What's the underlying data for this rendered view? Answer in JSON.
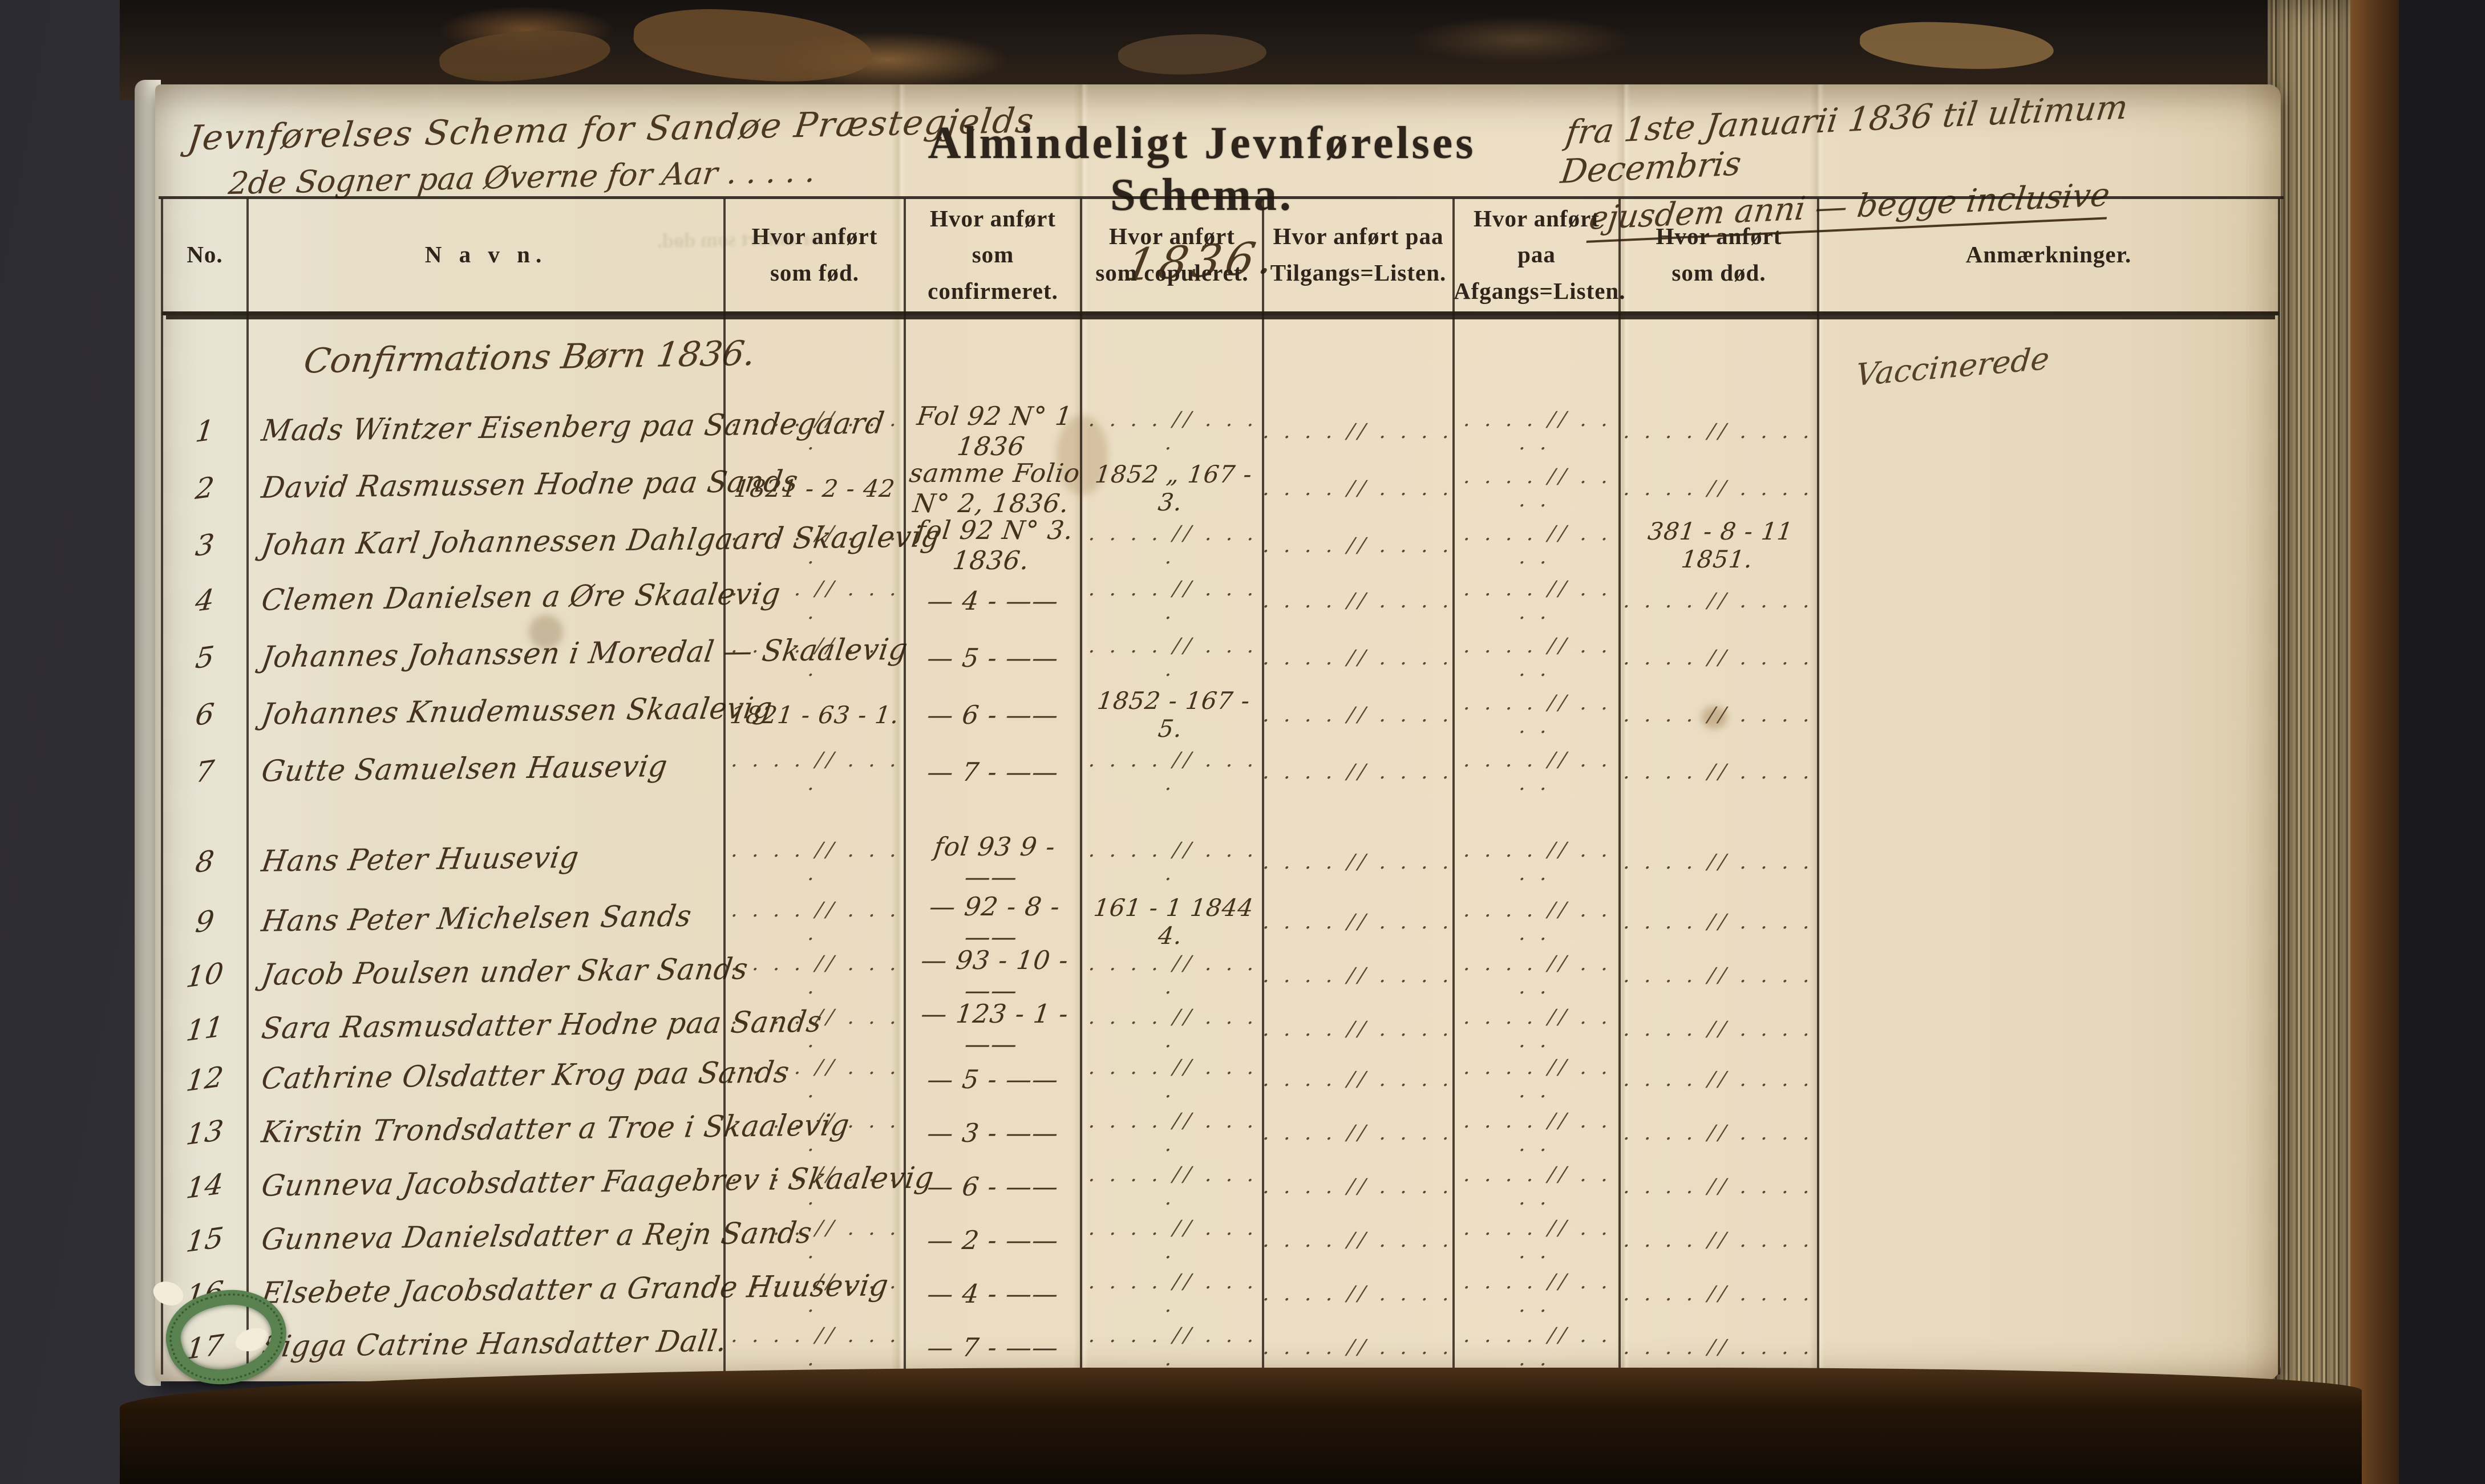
{
  "page": {
    "header": {
      "left_line1": "Jevnførelses Schema for Sandøe Præstegjelds",
      "left_line2": "2de Sogner paa Øverne    for Aar . . . . .",
      "title": "Almindeligt Jevnførelses Schema.",
      "year": "1836.",
      "right_line1": "fra 1ste Januarii 1836 til ultimum Decembris",
      "right_line2": "ejusdem anni — begge inclusive"
    },
    "ghost_text": "Hvor anført som død.",
    "colors": {
      "paper": "#e9dcc2",
      "ink": "#44321f",
      "printed_ink": "#2e241a",
      "cover_brown": "#5c3a1d",
      "bookmark_green": "#5a8150"
    }
  },
  "table": {
    "columns": [
      "No.",
      "N a v n.",
      "Hvor anført\nsom fød.",
      "Hvor anført\nsom confirmeret.",
      "Hvor anført\nsom copuleret.",
      "Hvor anført paa\nTilgangs=Listen.",
      "Hvor anført paa\nAfgangs=Listen.",
      "Hvor anført\nsom død.",
      "Anmærkninger."
    ],
    "section_heading": "Confirmations Børn 1836.",
    "vaccinated_note": "Vaccinerede",
    "ditto_mark": ". . . .  //  . . . .",
    "row_fields": [
      "no",
      "name",
      "born",
      "confirmed",
      "married",
      "arrival",
      "departure",
      "died",
      "remarks"
    ],
    "rows": [
      {
        "no": "1",
        "name": "Mads Wintzer Eisenberg paa Sandegaard",
        "born": "DITTO",
        "confirmed": "Fol 92 N° 1 1836",
        "married": "DITTO",
        "arrival": "DITTO",
        "departure": "DITTO",
        "died": "DITTO",
        "remarks": ""
      },
      {
        "no": "2",
        "name": "David Rasmussen Hodne paa Sands",
        "born": "1821 - 2 - 42",
        "confirmed": "samme Folio N° 2, 1836.",
        "married": "1852 „ 167 - 3.",
        "arrival": "DITTO",
        "departure": "DITTO",
        "died": "DITTO",
        "remarks": ""
      },
      {
        "no": "3",
        "name": "Johan Karl Johannessen Dahlgaard Skaglevig",
        "born": "DITTO",
        "confirmed": "fol 92 N° 3. 1836.",
        "married": "DITTO",
        "arrival": "DITTO",
        "departure": "DITTO",
        "died": "381 - 8 - 11 1851.",
        "remarks": ""
      },
      {
        "no": "4",
        "name": "Clemen Danielsen a Øre Skaalevig",
        "born": "DITTO",
        "confirmed": "— 4 - ——",
        "married": "DITTO",
        "arrival": "DITTO",
        "departure": "DITTO",
        "died": "DITTO",
        "remarks": ""
      },
      {
        "no": "5",
        "name": "Johannes Johanssen i Moredal — Skaalevig",
        "born": "DITTO",
        "confirmed": "— 5 - ——",
        "married": "DITTO",
        "arrival": "DITTO",
        "departure": "DITTO",
        "died": "DITTO",
        "remarks": ""
      },
      {
        "no": "6",
        "name": "Johannes Knudemussen Skaalevig",
        "born": "1821 - 63 - 1.",
        "confirmed": "— 6 - ——",
        "married": "1852 - 167 - 5.",
        "arrival": "DITTO",
        "departure": "DITTO",
        "died": "DITTO",
        "remarks": ""
      },
      {
        "no": "7",
        "name": "Gutte Samuelsen Hausevig",
        "born": "DITTO",
        "confirmed": "— 7 - ——",
        "married": "DITTO",
        "arrival": "DITTO",
        "departure": "DITTO",
        "died": "DITTO",
        "remarks": ""
      },
      {
        "no": "8",
        "name": "Hans Peter Huusevig",
        "born": "DITTO",
        "confirmed": "fol 93  9 - ——",
        "married": "DITTO",
        "arrival": "DITTO",
        "departure": "DITTO",
        "died": "DITTO",
        "remarks": ""
      },
      {
        "no": "9",
        "name": "Hans Peter Michelsen Sands",
        "born": "DITTO",
        "confirmed": "— 92 - 8 - ——",
        "married": "161 - 1 1844\n4.",
        "arrival": "DITTO",
        "departure": "DITTO",
        "died": "DITTO",
        "remarks": ""
      },
      {
        "no": "10",
        "name": "Jacob Poulsen under Skar Sands",
        "born": "DITTO",
        "confirmed": "— 93 - 10 - ——",
        "married": "DITTO",
        "arrival": "DITTO",
        "departure": "DITTO",
        "died": "DITTO",
        "remarks": ""
      },
      {
        "no": "11",
        "name": "Sara Rasmusdatter Hodne paa Sands",
        "born": "DITTO",
        "confirmed": "— 123 - 1 - ——",
        "married": "DITTO",
        "arrival": "DITTO",
        "departure": "DITTO",
        "died": "DITTO",
        "remarks": ""
      },
      {
        "no": "12",
        "name": "Cathrine Olsdatter Krog paa Sands",
        "born": "DITTO",
        "confirmed": "— 5 - ——",
        "married": "DITTO",
        "arrival": "DITTO",
        "departure": "DITTO",
        "died": "DITTO",
        "remarks": ""
      },
      {
        "no": "13",
        "name": "Kirstin Trondsdatter a Troe i Skaalevig",
        "born": "DITTO",
        "confirmed": "— 3 - ——",
        "married": "DITTO",
        "arrival": "DITTO",
        "departure": "DITTO",
        "died": "DITTO",
        "remarks": ""
      },
      {
        "no": "14",
        "name": "Gunneva Jacobsdatter Faagebrev i Skaalevig",
        "born": "DITTO",
        "confirmed": "— 6 - ——",
        "married": "DITTO",
        "arrival": "DITTO",
        "departure": "DITTO",
        "died": "DITTO",
        "remarks": ""
      },
      {
        "no": "15",
        "name": "Gunneva Danielsdatter a Rejn Sands",
        "born": "DITTO",
        "confirmed": "— 2 - ——",
        "married": "DITTO",
        "arrival": "DITTO",
        "departure": "DITTO",
        "died": "DITTO",
        "remarks": ""
      },
      {
        "no": "16",
        "name": "Elsebete Jacobsdatter a Grande Huusevig",
        "born": "DITTO",
        "confirmed": "— 4 - ——",
        "married": "DITTO",
        "arrival": "DITTO",
        "departure": "DITTO",
        "died": "DITTO",
        "remarks": ""
      },
      {
        "no": "17",
        "name": "Sigga Catrine Hansdatter Dall.",
        "born": "DITTO",
        "confirmed": "— 7 - ——",
        "married": "DITTO",
        "arrival": "DITTO",
        "departure": "DITTO",
        "died": "DITTO",
        "remarks": ""
      }
    ]
  }
}
